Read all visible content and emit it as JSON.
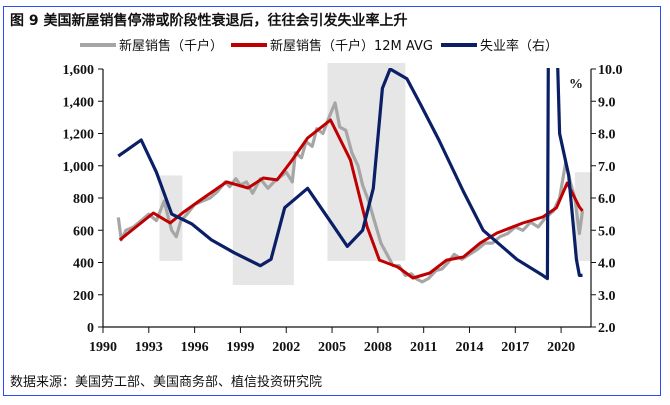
{
  "title": "图 9 美国新屋销售停滞或阶段性衰退后，往往会引发失业率上升",
  "source": "数据来源：美国劳工部、美国商务部、植信投资研究院",
  "chart_data": {
    "type": "line",
    "title": "图 9 美国新屋销售停滞或阶段性衰退后，往往会引发失业率上升",
    "xlabel": "",
    "ylabel_left": "新屋销售（千户）",
    "ylabel_right": "%",
    "xlim": [
      1990,
      2022
    ],
    "ylim_left": [
      0,
      1600
    ],
    "ylim_right": [
      2.0,
      10.0
    ],
    "x_ticks": [
      "1990",
      "1993",
      "1996",
      "1999",
      "2002",
      "2005",
      "2008",
      "2011",
      "2014",
      "2017",
      "2020"
    ],
    "y_left_ticks": [
      "0",
      "200",
      "400",
      "600",
      "800",
      "1,000",
      "1,200",
      "1,400",
      "1,600"
    ],
    "y_right_ticks": [
      "2.0",
      "3.0",
      "4.0",
      "5.0",
      "6.0",
      "7.0",
      "8.0",
      "9.0",
      "10.0"
    ],
    "legend_position": "top",
    "grid": false,
    "shaded_periods": [
      {
        "x": [
          1993.7,
          1995.2
        ],
        "y": [
          410,
          940
        ]
      },
      {
        "x": [
          1998.5,
          2002.5
        ],
        "y": [
          260,
          1090
        ]
      },
      {
        "x": [
          2004.7,
          2009.8
        ],
        "y": [
          410,
          1640
        ]
      },
      {
        "x": [
          2020.9,
          2022.0
        ],
        "y": [
          410,
          960
        ]
      }
    ],
    "series": [
      {
        "name": "新屋销售（千户）",
        "axis": "left",
        "color": "#a6a6a6",
        "x": [
          1991.0,
          1991.2,
          1991.5,
          1992,
          1992.5,
          1993,
          1993.5,
          1994,
          1994.5,
          1994.8,
          1995.1,
          1995.5,
          1996,
          1996.5,
          1997,
          1997.5,
          1998,
          1998.3,
          1998.7,
          1999,
          1999.4,
          1999.8,
          2000.3,
          2000.8,
          2001.2,
          2001.6,
          2002,
          2002.4,
          2002.6,
          2003,
          2003.3,
          2003.7,
          2004,
          2004.4,
          2004.8,
          2005.2,
          2005.5,
          2005.9,
          2006.3,
          2006.7,
          2007,
          2007.4,
          2007.8,
          2008.2,
          2008.6,
          2009,
          2009.4,
          2009.8,
          2010.2,
          2010.5,
          2010.9,
          2011.3,
          2011.8,
          2012.2,
          2012.6,
          2013,
          2013.5,
          2014,
          2014.5,
          2015,
          2015.5,
          2016,
          2016.5,
          2017,
          2017.5,
          2018,
          2018.5,
          2019,
          2019.5,
          2019.9,
          2020.3,
          2020.6,
          2020.9,
          2021.2,
          2021.4
        ],
        "values": [
          680,
          540,
          600,
          620,
          660,
          700,
          660,
          780,
          600,
          560,
          660,
          700,
          760,
          780,
          800,
          840,
          900,
          870,
          920,
          880,
          900,
          830,
          920,
          860,
          900,
          930,
          960,
          900,
          1080,
          1050,
          1150,
          1120,
          1230,
          1200,
          1300,
          1390,
          1240,
          1220,
          1080,
          1000,
          880,
          780,
          650,
          520,
          450,
          380,
          380,
          320,
          330,
          300,
          280,
          300,
          350,
          360,
          400,
          450,
          420,
          450,
          480,
          520,
          520,
          560,
          580,
          620,
          600,
          650,
          620,
          680,
          720,
          800,
          1020,
          900,
          800,
          580,
          720
        ]
      },
      {
        "name": "新屋销售（千户）12M AVG",
        "axis": "left",
        "color": "#c00000",
        "x": [
          1991.1,
          1993.3,
          1994.4,
          1995.2,
          1996.4,
          1998.1,
          1999.5,
          2000.5,
          2001.4,
          2002.4,
          2003.4,
          2004.9,
          2006.2,
          2007.3,
          2008.1,
          2009.3,
          2010.3,
          2011.4,
          2012.5,
          2013.6,
          2014.7,
          2015.8,
          2017.5,
          2018.8,
          2019.7,
          2020.4,
          2021.2,
          2021.4
        ],
        "values": [
          540,
          707,
          645,
          707,
          788,
          900,
          862,
          924,
          912,
          1036,
          1172,
          1284,
          1036,
          620,
          415,
          372,
          304,
          335,
          415,
          434,
          521,
          583,
          645,
          682,
          740,
          893,
          744,
          720
        ]
      },
      {
        "name": "失业率（右）",
        "axis": "right",
        "color": "#0a1f66",
        "x": [
          1991.0,
          1992.5,
          1993.5,
          1994.5,
          1995.8,
          1997.1,
          1998.6,
          2000.3,
          2001.0,
          2001.9,
          2003.4,
          2005.0,
          2006.0,
          2007.0,
          2007.7,
          2008.3,
          2008.8,
          2009.9,
          2010.8,
          2012.0,
          2013.6,
          2014.9,
          2017.1,
          2018.8,
          2019.1,
          2019.2,
          2019.5,
          2019.9,
          2020.5,
          2021.0,
          2021.2,
          2021.4
        ],
        "values": [
          7.3,
          7.8,
          6.8,
          5.5,
          5.2,
          4.7,
          4.3,
          3.9,
          4.1,
          5.7,
          6.3,
          5.2,
          4.5,
          5.0,
          6.3,
          9.4,
          10.0,
          9.7,
          8.9,
          7.8,
          6.2,
          5.0,
          4.1,
          3.6,
          3.5,
          14.7,
          14.7,
          8.0,
          6.7,
          4.1,
          3.6,
          3.6
        ]
      }
    ]
  }
}
